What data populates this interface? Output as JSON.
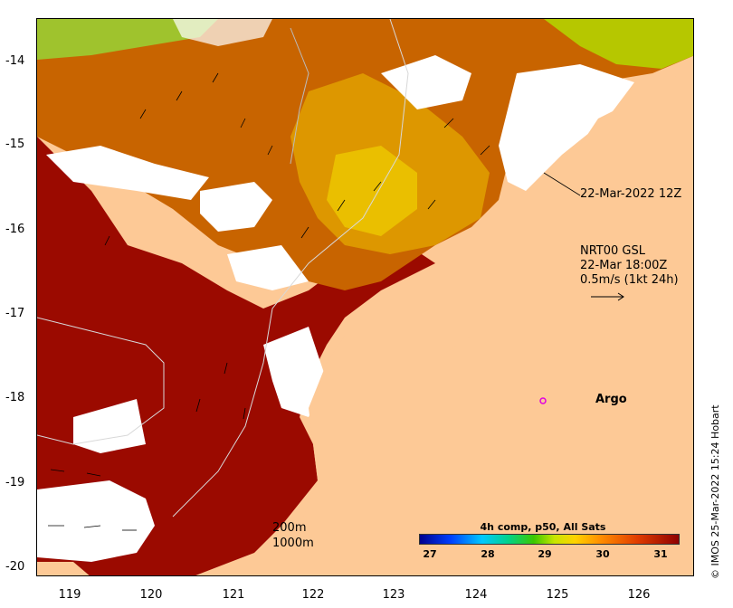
{
  "axes": {
    "y_ticks": [
      "-14",
      "-15",
      "-16",
      "-17",
      "-18",
      "-19",
      "-20"
    ],
    "x_ticks": [
      "119",
      "120",
      "121",
      "122",
      "123",
      "124",
      "125",
      "126"
    ]
  },
  "annotations": {
    "swath_time": "22-Mar-2022 12Z",
    "current_source": "NRT00 GSL",
    "current_time": "22-Mar 18:00Z",
    "current_scale": "0.5m/s (1kt 24h)",
    "isobath_200": "200m",
    "isobath_1000": "1000m",
    "argo_label": "Argo"
  },
  "colorbar": {
    "title": "4h comp, p50, All Sats",
    "ticks": [
      "27",
      "28",
      "29",
      "30",
      "31"
    ]
  },
  "credit": "© IMOS 25-Mar-2022 15:24 Hobart",
  "colors": {
    "land": "#fdc996",
    "sst_warm": "#9b0a00",
    "sst_mid": "#c86400",
    "sst_cool": "#e6b400",
    "argo": "#e000e0"
  }
}
